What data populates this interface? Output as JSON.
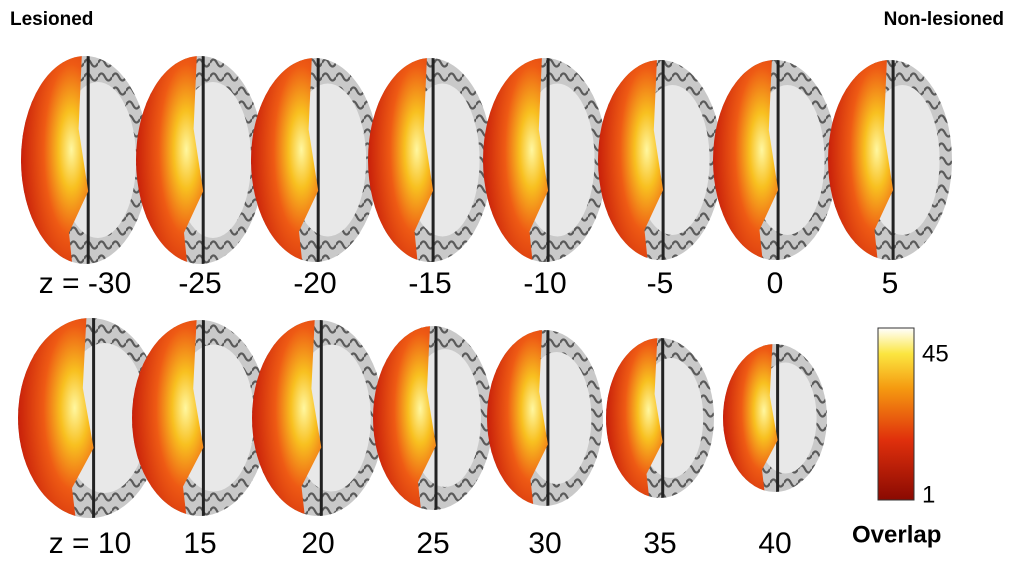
{
  "header": {
    "left": "Lesioned",
    "right": "Non-lesioned"
  },
  "rows": [
    {
      "slices": [
        "z = -30",
        "-25",
        "-20",
        "-15",
        "-10",
        "-5",
        "0",
        "5"
      ]
    },
    {
      "slices": [
        "z = 10",
        "15",
        "20",
        "25",
        "30",
        "35",
        "40"
      ]
    }
  ],
  "colorbar": {
    "max": 45,
    "min": 1,
    "title": "Overlap"
  }
}
